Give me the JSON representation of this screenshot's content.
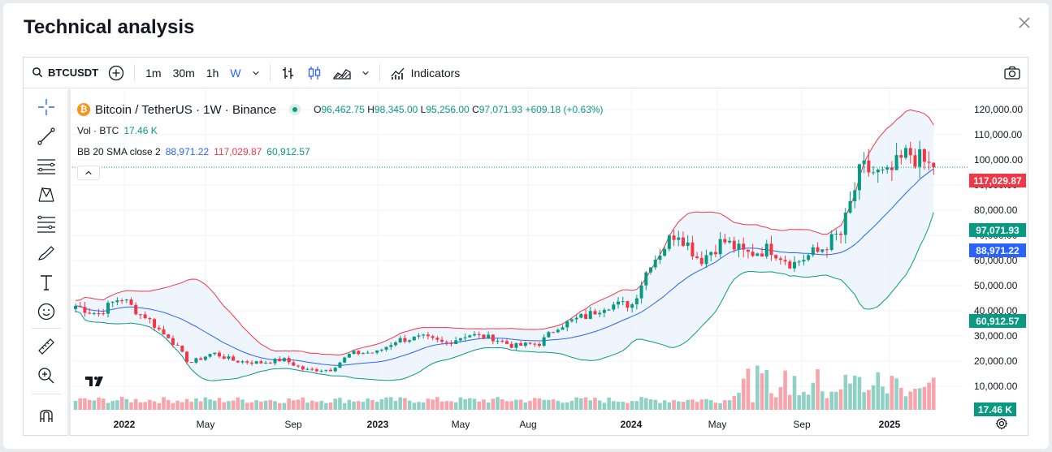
{
  "modal": {
    "title": "Technical analysis"
  },
  "toolbar": {
    "symbol": "BTCUSDT",
    "intervals": [
      "1m",
      "30m",
      "1h",
      "W"
    ],
    "indicators_label": "Indicators"
  },
  "legend": {
    "pair": "Bitcoin / TetherUS · 1W · Binance",
    "o_label": "O",
    "o_value": "96,462.75",
    "h_label": "H",
    "h_value": "98,345.00",
    "l_label": "L",
    "l_value": "95,256.00",
    "c_label": "C",
    "c_value": "97,071.93",
    "change": "+609.18 (+0.63%)",
    "vol_label": "Vol · BTC",
    "vol_value": "17.46 K",
    "bb_label": "BB 20 SMA close 2",
    "bb_basis": "88,971.22",
    "bb_upper": "117,029.87",
    "bb_lower": "60,912.57"
  },
  "price_axis": {
    "ticks": [
      "120,000.00",
      "110,000.00",
      "100,000.00",
      "90,000.00",
      "80,000.00",
      "70,000.00",
      "60,000.00",
      "50,000.00",
      "40,000.00",
      "30,000.00",
      "20,000.00",
      "10,000.00"
    ],
    "tags": {
      "upper": "117,029.87",
      "last": "97,071.93",
      "basis": "88,971.22",
      "lower": "60,912.57",
      "volume": "17.46 K"
    }
  },
  "time_axis": {
    "labels": [
      "2022",
      "May",
      "Sep",
      "2023",
      "May",
      "Aug",
      "2024",
      "May",
      "Sep",
      "2025"
    ]
  },
  "colors": {
    "up": "#089981",
    "down": "#f23645",
    "basis": "#2962ff",
    "upper_band": "#f23645",
    "lower_band": "#089981",
    "band_fill": "#e8f1fb"
  },
  "chart_data": {
    "type": "candlestick",
    "interval": "1W",
    "y_range": [
      0,
      125000
    ],
    "price_series": [
      [
        "2022-01",
        42000
      ],
      [
        "2022-02",
        39000
      ],
      [
        "2022-03",
        45000
      ],
      [
        "2022-04",
        38000
      ],
      [
        "2022-05",
        30000
      ],
      [
        "2022-06",
        19500
      ],
      [
        "2022-07",
        23000
      ],
      [
        "2022-08",
        20000
      ],
      [
        "2022-09",
        19400
      ],
      [
        "2022-10",
        20500
      ],
      [
        "2022-11",
        16500
      ],
      [
        "2022-12",
        16600
      ],
      [
        "2023-01",
        23100
      ],
      [
        "2023-02",
        23500
      ],
      [
        "2023-03",
        28500
      ],
      [
        "2023-04",
        29300
      ],
      [
        "2023-05",
        27200
      ],
      [
        "2023-06",
        30500
      ],
      [
        "2023-07",
        29200
      ],
      [
        "2023-08",
        26000
      ],
      [
        "2023-09",
        27000
      ],
      [
        "2023-10",
        34500
      ],
      [
        "2023-11",
        37700
      ],
      [
        "2023-12",
        42300
      ],
      [
        "2024-01",
        42600
      ],
      [
        "2024-02",
        61100
      ],
      [
        "2024-03",
        71300
      ],
      [
        "2024-04",
        60700
      ],
      [
        "2024-05",
        67500
      ],
      [
        "2024-06",
        62700
      ],
      [
        "2024-07",
        64600
      ],
      [
        "2024-08",
        58900
      ],
      [
        "2024-09",
        63300
      ],
      [
        "2024-10",
        70200
      ],
      [
        "2024-11",
        96400
      ],
      [
        "2024-12",
        93500
      ],
      [
        "2025-01",
        102400
      ],
      [
        "2025-02",
        97071.93
      ]
    ],
    "last": {
      "open": 96462.75,
      "high": 98345.0,
      "low": 95256.0,
      "close": 97071.93,
      "change": 609.18,
      "change_pct": 0.63,
      "volume_k": 17.46
    },
    "bollinger": {
      "period": 20,
      "mult": 2,
      "basis": 88971.22,
      "upper": 117029.87,
      "lower": 60912.57
    }
  }
}
